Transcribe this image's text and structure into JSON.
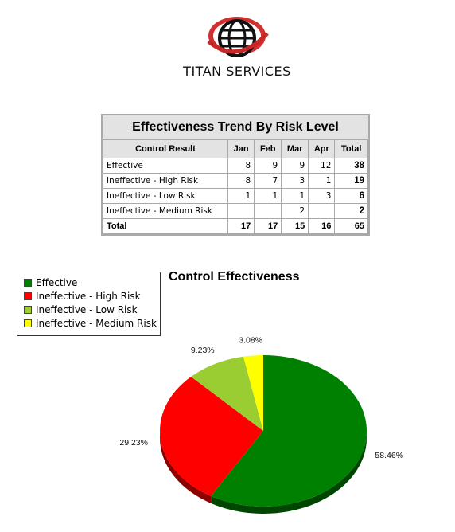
{
  "logo": {
    "text": "TITAN SERVICES"
  },
  "table": {
    "title": "Effectiveness Trend By Risk Level",
    "headers": [
      "Control Result",
      "Jan",
      "Feb",
      "Mar",
      "Apr",
      "Total"
    ],
    "rows": [
      {
        "label": "Effective",
        "values": [
          "8",
          "9",
          "9",
          "12"
        ],
        "total": "38"
      },
      {
        "label": "Ineffective - High Risk",
        "values": [
          "8",
          "7",
          "3",
          "1"
        ],
        "total": "19"
      },
      {
        "label": "Ineffective - Low Risk",
        "values": [
          "1",
          "1",
          "1",
          "3"
        ],
        "total": "6"
      },
      {
        "label": "Ineffective - Medium Risk",
        "values": [
          "",
          "",
          "2",
          ""
        ],
        "total": "2"
      }
    ],
    "total_row": {
      "label": "Total",
      "values": [
        "17",
        "17",
        "15",
        "16"
      ],
      "total": "65"
    }
  },
  "chart_data": {
    "type": "pie",
    "title": "Control Effectiveness",
    "legend_position": "top-left",
    "slices": [
      {
        "label": "Effective",
        "value": 58.46,
        "display": "58.46%",
        "color": "#008000"
      },
      {
        "label": "Ineffective - High Risk",
        "value": 29.23,
        "display": "29.23%",
        "color": "#ff0000"
      },
      {
        "label": "Ineffective - Low Risk",
        "value": 9.23,
        "display": "9.23%",
        "color": "#9acd32"
      },
      {
        "label": "Ineffective - Medium Risk",
        "value": 3.08,
        "display": "3.08%",
        "color": "#ffff00"
      }
    ]
  }
}
